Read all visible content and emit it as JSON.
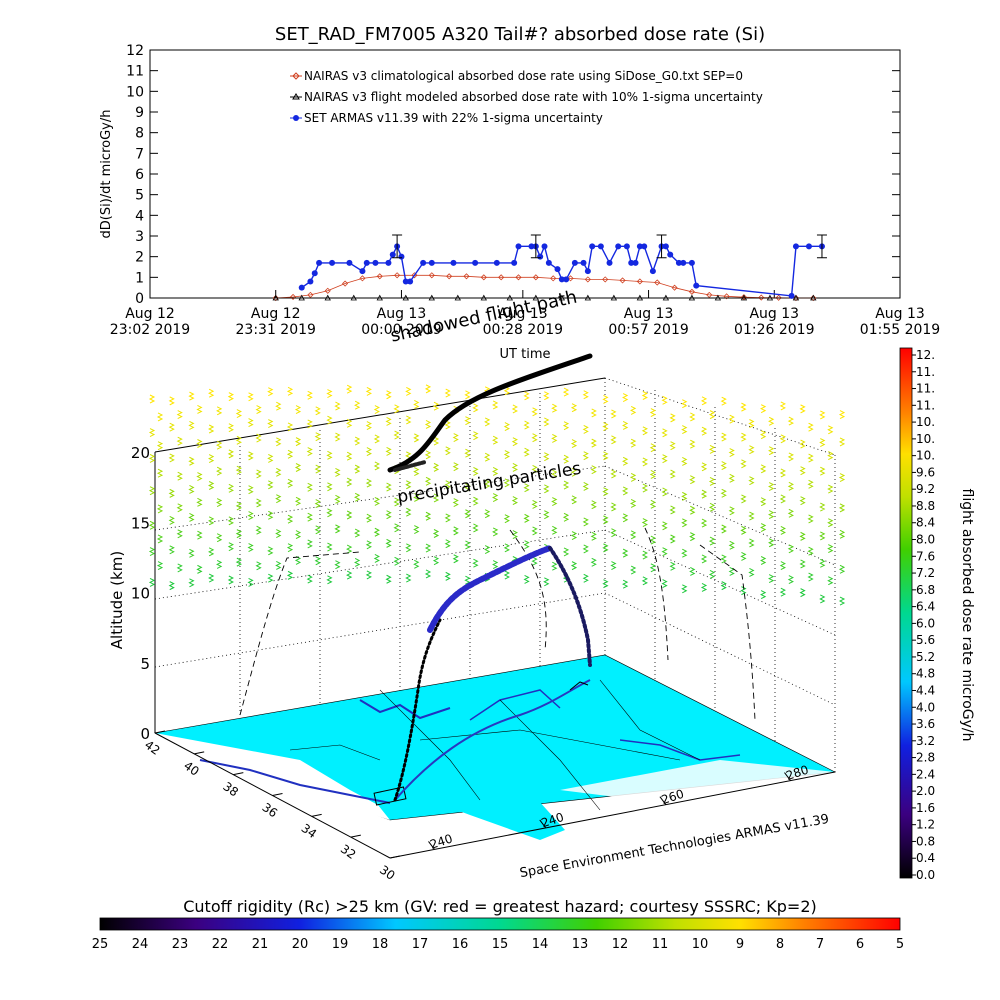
{
  "chart_data": [
    {
      "type": "line",
      "title": "SET_RAD_FM7005  A320 Tail#? absorbed dose rate (Si)",
      "ylabel": "dD(Si)/dt microGy/h",
      "xlabel": "UT time",
      "ylim": [
        0,
        12
      ],
      "yticks": [
        0,
        1,
        2,
        3,
        4,
        5,
        6,
        7,
        8,
        9,
        10,
        11,
        12
      ],
      "xlim_minutes": [
        0,
        173
      ],
      "xticks": [
        {
          "m": 0,
          "l1": "Aug 12",
          "l2": "23:02 2019"
        },
        {
          "m": 29,
          "l1": "Aug 12",
          "l2": "23:31 2019"
        },
        {
          "m": 58,
          "l1": "Aug 13",
          "l2": "00:00 2019"
        },
        {
          "m": 86,
          "l1": "Aug 13",
          "l2": "00:28 2019"
        },
        {
          "m": 115,
          "l1": "Aug 13",
          "l2": "00:57 2019"
        },
        {
          "m": 144,
          "l1": "Aug 13",
          "l2": "01:26 2019"
        },
        {
          "m": 173,
          "l1": "Aug 13",
          "l2": "01:55 2019"
        }
      ],
      "legend": [
        {
          "label": "NAIRAS v3 climatological absorbed dose rate using SiDose_G0.txt SEP=0",
          "color": "#d04020",
          "marker": "diamond"
        },
        {
          "label": "NAIRAS v3 flight modeled absorbed dose rate with 10% 1-sigma uncertainty",
          "color": "#000000",
          "marker": "triangle"
        },
        {
          "label": "SET ARMAS v11.39 with 22% 1-sigma uncertainty",
          "color": "#1428e0",
          "marker": "dot"
        }
      ],
      "series": [
        {
          "name": "NAIRAS v3 climatological absorbed dose rate using SiDose_G0.txt SEP=0",
          "x": [
            29,
            33,
            37,
            41,
            45,
            49,
            53,
            57,
            61,
            65,
            69,
            73,
            77,
            81,
            85,
            89,
            93,
            97,
            101,
            105,
            109,
            113,
            117,
            121,
            125,
            129,
            133,
            137,
            141,
            145,
            149,
            153
          ],
          "y": [
            0,
            0.05,
            0.15,
            0.35,
            0.7,
            0.95,
            1.05,
            1.1,
            1.1,
            1.1,
            1.05,
            1.05,
            1.0,
            1.0,
            1.0,
            1.0,
            0.95,
            0.95,
            0.9,
            0.9,
            0.85,
            0.8,
            0.75,
            0.5,
            0.3,
            0.15,
            0.08,
            0.04,
            0.02,
            0.01,
            0,
            0
          ]
        },
        {
          "name": "NAIRAS v3 flight modeled absorbed dose rate with 10% 1-sigma uncertainty",
          "x": [
            29,
            35,
            41,
            47,
            53,
            59,
            65,
            71,
            77,
            83,
            89,
            95,
            101,
            107,
            113,
            119,
            125,
            131,
            137,
            143,
            149,
            153
          ],
          "y": [
            0,
            0,
            0,
            0,
            0,
            0,
            0,
            0,
            0,
            0,
            0,
            0,
            0,
            0,
            0,
            0,
            0,
            0,
            0,
            0,
            0,
            0
          ]
        },
        {
          "name": "SET ARMAS v11.39 with 22% 1-sigma uncertainty",
          "x": [
            35,
            37,
            38,
            39,
            42,
            46,
            49,
            50,
            52,
            55,
            56,
            57,
            58,
            59,
            60,
            63,
            65,
            70,
            75,
            80,
            84,
            85,
            88,
            89,
            90,
            91,
            92,
            94,
            95,
            96,
            98,
            100,
            101,
            102,
            104,
            106,
            108,
            110,
            111,
            112,
            113,
            114,
            116,
            118,
            119,
            120,
            122,
            123,
            125,
            126,
            148,
            149,
            152,
            155
          ],
          "y": [
            0.5,
            0.8,
            1.2,
            1.7,
            1.7,
            1.7,
            1.3,
            1.7,
            1.7,
            1.7,
            2.1,
            2.5,
            2.0,
            0.8,
            0.8,
            1.7,
            1.7,
            1.7,
            1.7,
            1.7,
            1.7,
            2.5,
            2.5,
            2.5,
            2.0,
            2.5,
            1.7,
            1.4,
            0.9,
            0.9,
            1.7,
            1.7,
            1.3,
            2.5,
            2.5,
            1.7,
            2.5,
            2.5,
            1.7,
            1.7,
            2.5,
            2.5,
            1.3,
            2.5,
            2.5,
            2.1,
            1.7,
            1.7,
            1.7,
            0.6,
            0.1,
            2.5,
            2.5,
            2.5
          ],
          "errorbars": [
            {
              "x": 57,
              "y": 2.5,
              "err": 0.55
            },
            {
              "x": 89,
              "y": 2.5,
              "err": 0.55
            },
            {
              "x": 118,
              "y": 2.5,
              "err": 0.55
            },
            {
              "x": 155,
              "y": 2.5,
              "err": 0.55
            }
          ]
        }
      ]
    },
    {
      "type": "scatter",
      "title": "",
      "zlabel": "Altitude (km)",
      "zlim": [
        0,
        20
      ],
      "zticks": [
        0,
        5,
        10,
        15,
        20
      ],
      "lat_ticks": [
        "42",
        "40",
        "38",
        "36",
        "34",
        "32",
        "30"
      ],
      "lon_ticks": [
        "240",
        "240",
        "260",
        "280"
      ],
      "annotations": [
        "shadowed flight path",
        "precipitating particles"
      ],
      "credit": "Space Environment Technologies ARMAS v11.39",
      "colorbar": {
        "label": "flight absorbed dose rate microGy/h",
        "ticks": [
          "12.",
          "11.",
          "11.",
          "11.",
          "10.",
          "10.",
          "10.",
          "9.6",
          "9.2",
          "8.8",
          "8.4",
          "8.0",
          "7.6",
          "7.2",
          "6.8",
          "6.4",
          "6.0",
          "5.6",
          "5.2",
          "4.8",
          "4.4",
          "4.0",
          "3.6",
          "3.2",
          "2.8",
          "2.4",
          "2.0",
          "1.6",
          "1.2",
          "0.8",
          "0.4",
          "0.0"
        ]
      }
    },
    {
      "type": "heatmap",
      "title": "Cutoff rigidity (Rc) >25 km (GV: red = greatest hazard; courtesy SSSRC; Kp=2)",
      "ticks": [
        "25",
        "24",
        "23",
        "22",
        "21",
        "20",
        "19",
        "18",
        "17",
        "16",
        "15",
        "14",
        "13",
        "12",
        "11",
        "10",
        "9",
        "8",
        "7",
        "6",
        "5"
      ]
    }
  ]
}
